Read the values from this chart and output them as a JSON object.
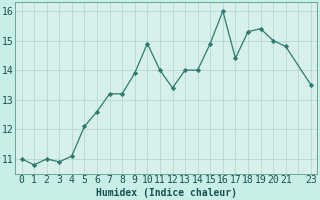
{
  "x": [
    0,
    1,
    2,
    3,
    4,
    5,
    6,
    7,
    8,
    9,
    10,
    11,
    12,
    13,
    14,
    15,
    16,
    17,
    18,
    19,
    20,
    21,
    23
  ],
  "y": [
    11.0,
    10.8,
    11.0,
    10.9,
    11.1,
    12.1,
    12.6,
    13.2,
    13.2,
    13.9,
    14.9,
    14.0,
    13.4,
    14.0,
    14.0,
    14.9,
    16.0,
    14.4,
    15.3,
    15.4,
    15.0,
    14.8,
    13.5
  ],
  "line_color": "#2d7b6e",
  "marker_color": "#2d7b6e",
  "bg_color": "#c8eee8",
  "grid_color": "#b8d8d2",
  "plot_bg": "#d8f0ec",
  "xlabel": "Humidex (Indice chaleur)",
  "ylabel_ticks": [
    11,
    12,
    13,
    14,
    15,
    16
  ],
  "xtick_positions": [
    0,
    1,
    2,
    3,
    4,
    5,
    6,
    7,
    8,
    9,
    10,
    11,
    12,
    13,
    14,
    15,
    16,
    17,
    18,
    19,
    20,
    21,
    22,
    23
  ],
  "xtick_labels": [
    "0",
    "1",
    "2",
    "3",
    "4",
    "5",
    "6",
    "7",
    "8",
    "9",
    "10",
    "11",
    "12",
    "13",
    "14",
    "15",
    "16",
    "17",
    "18",
    "19",
    "20",
    "21",
    "",
    "23"
  ],
  "xlim": [
    -0.5,
    23.5
  ],
  "ylim": [
    10.5,
    16.3
  ],
  "xlabel_color": "#1a5050",
  "tick_color": "#1a5050",
  "font_size_xlabel": 7.0,
  "font_size_ticks": 7.0,
  "linewidth": 0.9,
  "markersize": 2.2
}
